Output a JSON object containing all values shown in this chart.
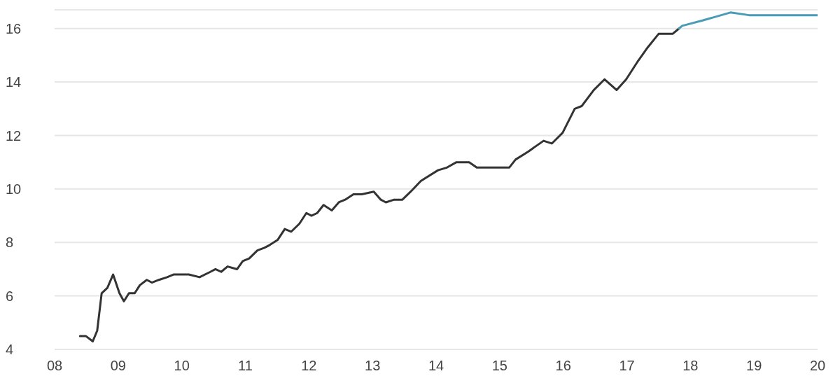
{
  "chart_data": {
    "type": "line",
    "xlim": [
      2008,
      2020
    ],
    "xticks": [
      {
        "value": 2008,
        "label": "08"
      },
      {
        "value": 2009,
        "label": "09"
      },
      {
        "value": 2010,
        "label": "10"
      },
      {
        "value": 2011,
        "label": "11"
      },
      {
        "value": 2012,
        "label": "12"
      },
      {
        "value": 2013,
        "label": "13"
      },
      {
        "value": 2014,
        "label": "14"
      },
      {
        "value": 2015,
        "label": "15"
      },
      {
        "value": 2016,
        "label": "16"
      },
      {
        "value": 2017,
        "label": "17"
      },
      {
        "value": 2018,
        "label": "18"
      },
      {
        "value": 2019,
        "label": "19"
      },
      {
        "value": 2020,
        "label": "20"
      }
    ],
    "ylim": [
      4,
      16.7
    ],
    "yticks": [
      4,
      6,
      8,
      10,
      12,
      14,
      16
    ],
    "grid": "y",
    "marker": "none",
    "line_style": "solid",
    "series": [
      {
        "color": "#333333",
        "x": [
          2008.4,
          2008.49,
          2008.6,
          2008.67,
          2008.74,
          2008.83,
          2008.92,
          2009.02,
          2009.09,
          2009.17,
          2009.26,
          2009.34,
          2009.45,
          2009.53,
          2009.64,
          2009.77,
          2009.87,
          2010.11,
          2010.28,
          2010.45,
          2010.53,
          2010.62,
          2010.72,
          2010.87,
          2010.96,
          2011.06,
          2011.19,
          2011.3,
          2011.38,
          2011.51,
          2011.62,
          2011.72,
          2011.85,
          2011.96,
          2012.04,
          2012.13,
          2012.23,
          2012.36,
          2012.47,
          2012.57,
          2012.7,
          2012.83,
          2013.02,
          2013.13,
          2013.21,
          2013.34,
          2013.47,
          2013.6,
          2013.76,
          2014.03,
          2014.17,
          2014.32,
          2014.52,
          2014.64,
          2014.81,
          2014.98,
          2015.15,
          2015.25,
          2015.45,
          2015.69,
          2015.82,
          2015.99,
          2016.18,
          2016.29,
          2016.48,
          2016.65,
          2016.84,
          2016.99,
          2017.18,
          2017.33,
          2017.5,
          2017.6,
          2017.72,
          2017.82
        ],
        "values": [
          4.5,
          4.5,
          4.3,
          4.7,
          6.1,
          6.3,
          6.8,
          6.1,
          5.8,
          6.1,
          6.1,
          6.4,
          6.6,
          6.5,
          6.6,
          6.7,
          6.8,
          6.8,
          6.7,
          6.9,
          7.0,
          6.9,
          7.1,
          7.0,
          7.3,
          7.4,
          7.7,
          7.8,
          7.9,
          8.1,
          8.5,
          8.4,
          8.7,
          9.1,
          9.0,
          9.1,
          9.4,
          9.2,
          9.5,
          9.6,
          9.8,
          9.8,
          9.9,
          9.6,
          9.5,
          9.6,
          9.6,
          9.9,
          10.3,
          10.7,
          10.8,
          11.0,
          11.0,
          10.8,
          10.8,
          10.8,
          10.8,
          11.1,
          11.4,
          11.8,
          11.7,
          12.1,
          13.0,
          13.1,
          13.7,
          14.1,
          13.7,
          14.1,
          14.8,
          15.3,
          15.8,
          15.8,
          15.8,
          16.0
        ]
      },
      {
        "color": "#4a9bb5",
        "x": [
          2017.82,
          2017.87,
          2018.19,
          2018.63,
          2018.92,
          2019.41,
          2019.61,
          2020.0
        ],
        "values": [
          16.0,
          16.1,
          16.3,
          16.6,
          16.5,
          16.5,
          16.5,
          16.5
        ]
      }
    ]
  }
}
